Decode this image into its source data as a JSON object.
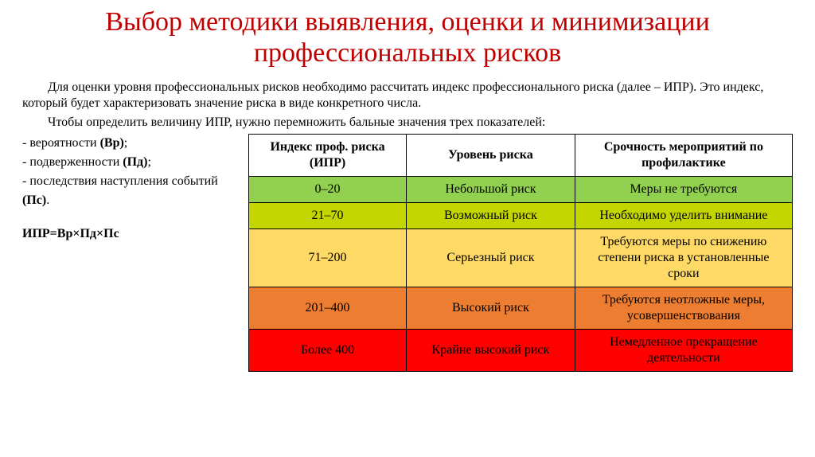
{
  "title": "Выбор методики выявления, оценки и минимизации профессиональных рисков",
  "paragraphs": {
    "p1": "Для оценки уровня профессиональных рисков необходимо рассчитать индекс профессионального риска (далее – ИПР). Это индекс, который будет характеризовать значение риска в виде конкретного числа.",
    "p2": "Чтобы определить величину ИПР, нужно перемножить бальные значения трех показателей:"
  },
  "bullets": {
    "b1_text": "- вероятности ",
    "b1_code": "(Вр)",
    "b1_suffix": ";",
    "b2_text": "- подверженности ",
    "b2_code": "(Пд)",
    "b2_suffix": ";",
    "b3_text": "- последствия наступления событий ",
    "b3_code": "(Пс)",
    "b3_suffix": "."
  },
  "formula": "ИПР=Вр×Пд×Пс",
  "table": {
    "headers": {
      "h1": "Индекс проф. риска (ИПР)",
      "h2": "Уровень риска",
      "h3": "Срочность мероприятий по профилактике"
    },
    "rows": [
      {
        "ipr": "0–20",
        "level": "Небольшой риск",
        "action": "Меры не требуются",
        "bg": "#92d050"
      },
      {
        "ipr": "21–70",
        "level": "Возможный риск",
        "action": "Необходимо уделить внимание",
        "bg": "#c4d600"
      },
      {
        "ipr": "71–200",
        "level": "Серьезный риск",
        "action": "Требуются меры по снижению степени риска в установленные сроки",
        "bg": "#ffd966"
      },
      {
        "ipr": "201–400",
        "level": "Высокий риск",
        "action": "Требуются неотложные меры, усовершенствования",
        "bg": "#ed7d31"
      },
      {
        "ipr": "Более 400",
        "level": "Крайне высокий риск",
        "action": "Немедленное прекращение деятельности",
        "bg": "#ff0000"
      }
    ]
  },
  "style": {
    "title_color": "#c00000",
    "background_color": "#ffffff",
    "border_color": "#000000",
    "title_fontsize": 34,
    "body_fontsize": 16,
    "font_family": "Times New Roman"
  }
}
